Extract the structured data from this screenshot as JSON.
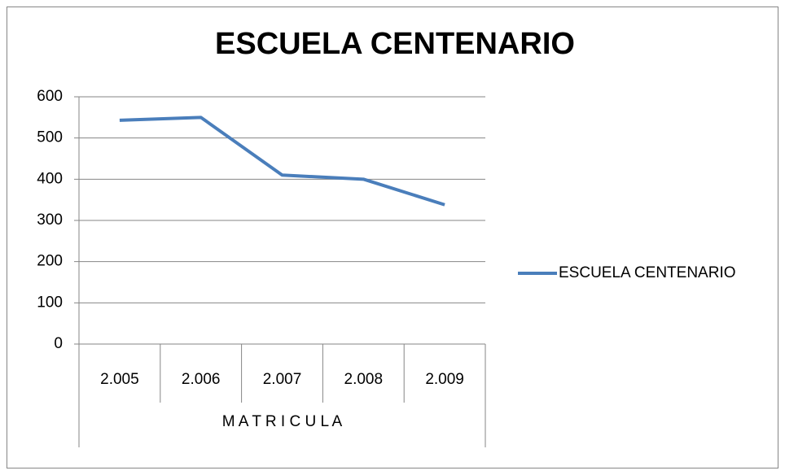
{
  "chart_data": {
    "type": "line",
    "title": "ESCUELA CENTENARIO",
    "categories": [
      "2.005",
      "2.006",
      "2.007",
      "2.008",
      "2.009"
    ],
    "xlabel": "M A T R I C U L A",
    "series": [
      {
        "name": "ESCUELA CENTENARIO",
        "color": "#4a7ebb",
        "values": [
          543,
          550,
          410,
          400,
          338
        ]
      }
    ],
    "ylim": [
      0,
      600
    ],
    "yticks": [
      0,
      100,
      200,
      300,
      400,
      500,
      600
    ],
    "grid": true,
    "legend": "right"
  }
}
